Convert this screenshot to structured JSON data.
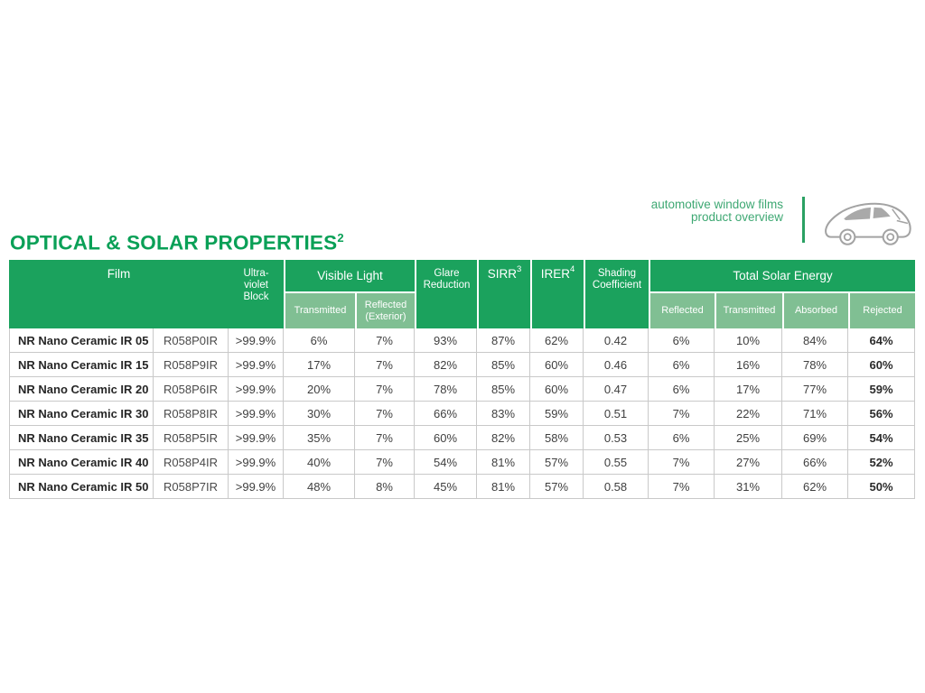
{
  "brand": {
    "tagline_line1": "automotive window films",
    "tagline_line2": "product overview"
  },
  "title": {
    "text": "OPTICAL & SOLAR PROPERTIES",
    "superscript": "2"
  },
  "icons": {
    "car": "car-outline-icon"
  },
  "colors": {
    "title_green": "#0aa057",
    "header_green": "#1ba25d",
    "subheader_green": "#80bf93",
    "tagline_green": "#3ea873",
    "border_gray": "#c9c9c9",
    "car_gray": "#a3a3a3"
  },
  "table": {
    "headers": {
      "film": "Film",
      "uv_block": "Ultra-\nviolet\nBlock",
      "visible_light": "Visible Light",
      "vl_transmitted": "Transmitted",
      "vl_reflected": "Reflected\n(Exterior)",
      "glare_reduction": "Glare\nReduction",
      "sirr": "SIRR",
      "sirr_sup": "3",
      "irer": "IRER",
      "irer_sup": "4",
      "shading_coefficient": "Shading\nCoefficient",
      "total_solar_energy": "Total Solar Energy",
      "tse_reflected": "Reflected",
      "tse_transmitted": "Transmitted",
      "tse_absorbed": "Absorbed",
      "tse_rejected": "Rejected"
    },
    "rows": [
      [
        "NR Nano Ceramic IR 05",
        "R058P0IR",
        ">99.9%",
        "6%",
        "7%",
        "93%",
        "87%",
        "62%",
        "0.42",
        "6%",
        "10%",
        "84%",
        "64%"
      ],
      [
        "NR Nano Ceramic IR 15",
        "R058P9IR",
        ">99.9%",
        "17%",
        "7%",
        "82%",
        "85%",
        "60%",
        "0.46",
        "6%",
        "16%",
        "78%",
        "60%"
      ],
      [
        "NR Nano Ceramic IR 20",
        "R058P6IR",
        ">99.9%",
        "20%",
        "7%",
        "78%",
        "85%",
        "60%",
        "0.47",
        "6%",
        "17%",
        "77%",
        "59%"
      ],
      [
        "NR Nano Ceramic IR 30",
        "R058P8IR",
        ">99.9%",
        "30%",
        "7%",
        "66%",
        "83%",
        "59%",
        "0.51",
        "7%",
        "22%",
        "71%",
        "56%"
      ],
      [
        "NR Nano Ceramic IR 35",
        "R058P5IR",
        ">99.9%",
        "35%",
        "7%",
        "60%",
        "82%",
        "58%",
        "0.53",
        "6%",
        "25%",
        "69%",
        "54%"
      ],
      [
        "NR Nano Ceramic IR 40",
        "R058P4IR",
        ">99.9%",
        "40%",
        "7%",
        "54%",
        "81%",
        "57%",
        "0.55",
        "7%",
        "27%",
        "66%",
        "52%"
      ],
      [
        "NR Nano Ceramic IR 50",
        "R058P7IR",
        ">99.9%",
        "48%",
        "8%",
        "45%",
        "81%",
        "57%",
        "0.58",
        "7%",
        "31%",
        "62%",
        "50%"
      ]
    ]
  }
}
